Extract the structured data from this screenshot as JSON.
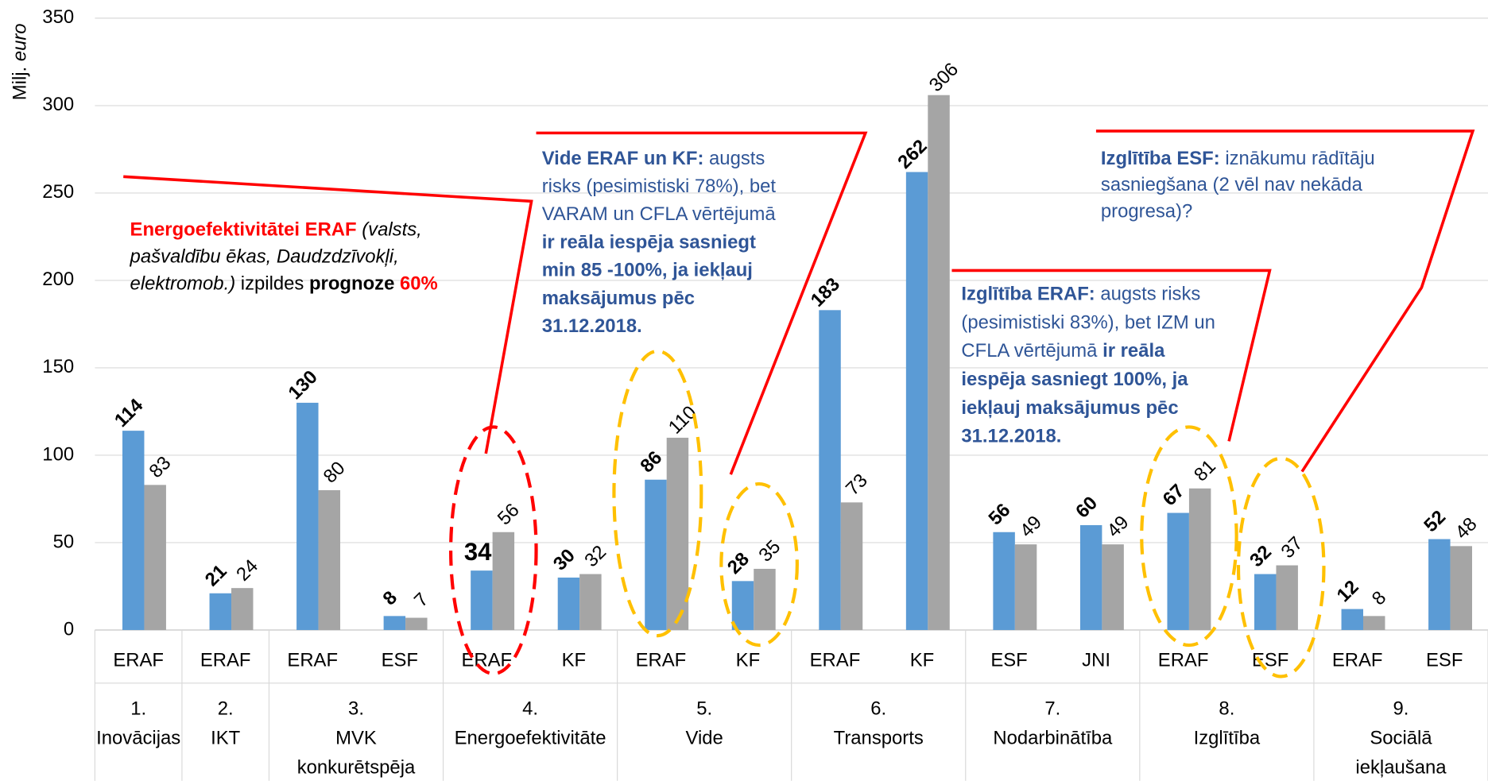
{
  "chart_data": {
    "type": "bar",
    "y_label": [
      {
        "text": "Milj. ",
        "style": "normal"
      },
      {
        "text": "euro",
        "style": "italic"
      }
    ],
    "categories": [
      "ERAF",
      "ERAF",
      "ERAF",
      "ESF",
      "ERAF",
      "KF",
      "ERAF",
      "KF",
      "ERAF",
      "KF",
      "ESF",
      "JNI",
      "ERAF",
      "ESF",
      "ERAF",
      "ESF"
    ],
    "groups": [
      {
        "lines": [
          "1.",
          "Inovācijas"
        ],
        "span": 1
      },
      {
        "lines": [
          "2.",
          "IKT"
        ],
        "span": 1
      },
      {
        "lines": [
          "3.",
          "MVK",
          "konkurētspēja"
        ],
        "span": 2
      },
      {
        "lines": [
          "4.",
          "Energoefektivitāte"
        ],
        "span": 2
      },
      {
        "lines": [
          "5.",
          "Vide"
        ],
        "span": 2
      },
      {
        "lines": [
          "6.",
          "Transports"
        ],
        "span": 2
      },
      {
        "lines": [
          "7.",
          "Nodarbinātība"
        ],
        "span": 2
      },
      {
        "lines": [
          "8.",
          "Izglītība"
        ],
        "span": 2
      },
      {
        "lines": [
          "9.",
          "Sociālā",
          "iekļaušana"
        ],
        "span": 2
      }
    ],
    "series": [
      {
        "color": "#5b9bd5",
        "label_weight": "bold",
        "label_highlight": {
          "index": 4,
          "color": "#ff0000"
        },
        "values": [
          114,
          21,
          130,
          8,
          34,
          30,
          86,
          28,
          183,
          262,
          56,
          60,
          67,
          32,
          12,
          52
        ]
      },
      {
        "color": "#a5a5a5",
        "label_weight": "normal",
        "values": [
          83,
          24,
          80,
          7,
          56,
          32,
          110,
          35,
          73,
          306,
          49,
          49,
          81,
          37,
          8,
          48
        ]
      }
    ],
    "ylim": [
      0,
      350
    ],
    "yticks": [
      0,
      50,
      100,
      150,
      200,
      250,
      300,
      350
    ],
    "grid": true,
    "annotations": [
      {
        "color": "#000000",
        "lines": [
          [
            {
              "text": "Energoefektivitātei ERAF",
              "style": "red-bold"
            },
            {
              "text": " (valsts,",
              "style": "italic"
            }
          ],
          [
            {
              "text": "pašvaldību ēkas, Daudzdzīvokļi,",
              "style": "italic"
            }
          ],
          [
            {
              "text": "elektromob.)",
              "style": "italic"
            },
            {
              "text": " izpildes ",
              "style": "normal"
            },
            {
              "text": "prognoze ",
              "style": "bold"
            },
            {
              "text": "60%",
              "style": "red-bold"
            }
          ]
        ]
      },
      {
        "color": "#2f5597",
        "lines": [
          [
            {
              "text": "Vide ERAF un  KF:",
              "style": "bold"
            },
            {
              "text": " augsts",
              "style": "normal"
            }
          ],
          [
            {
              "text": "risks (pesimistiski 78%), bet",
              "style": "normal"
            }
          ],
          [
            {
              "text": "VARAM un CFLA vērtējumā",
              "style": "normal"
            }
          ],
          [
            {
              "text": "ir reāla  iespēja sasniegt",
              "style": "bold"
            }
          ],
          [
            {
              "text": "min 85 -100%, ja iekļauj",
              "style": "bold"
            }
          ],
          [
            {
              "text": "maksājumus pēc",
              "style": "bold"
            }
          ],
          [
            {
              "text": "31.12.2018.",
              "style": "bold"
            }
          ]
        ]
      },
      {
        "color": "#2f5597",
        "lines": [
          [
            {
              "text": "Izglītība ERAF:",
              "style": "bold"
            },
            {
              "text": "  augsts risks",
              "style": "normal"
            }
          ],
          [
            {
              "text": "(pesimistiski 83%), bet IZM un",
              "style": "normal"
            }
          ],
          [
            {
              "text": "CFLA vērtējumā ",
              "style": "normal"
            },
            {
              "text": "ir reāla",
              "style": "bold"
            }
          ],
          [
            {
              "text": "iespēja sasniegt 100%, ja",
              "style": "bold"
            }
          ],
          [
            {
              "text": "iekļauj maksājumus pēc",
              "style": "bold"
            }
          ],
          [
            {
              "text": "31.12.2018.",
              "style": "bold"
            }
          ]
        ]
      },
      {
        "color": "#2f5597",
        "lines": [
          [
            {
              "text": "Izglītība ESF:",
              "style": "bold"
            },
            {
              "text": "  iznākumu rādītāju",
              "style": "normal"
            }
          ],
          [
            {
              "text": "sasniegšana (2 vēl nav nekāda",
              "style": "normal"
            }
          ],
          [
            {
              "text": "progresa)?",
              "style": "normal"
            }
          ]
        ]
      }
    ]
  }
}
